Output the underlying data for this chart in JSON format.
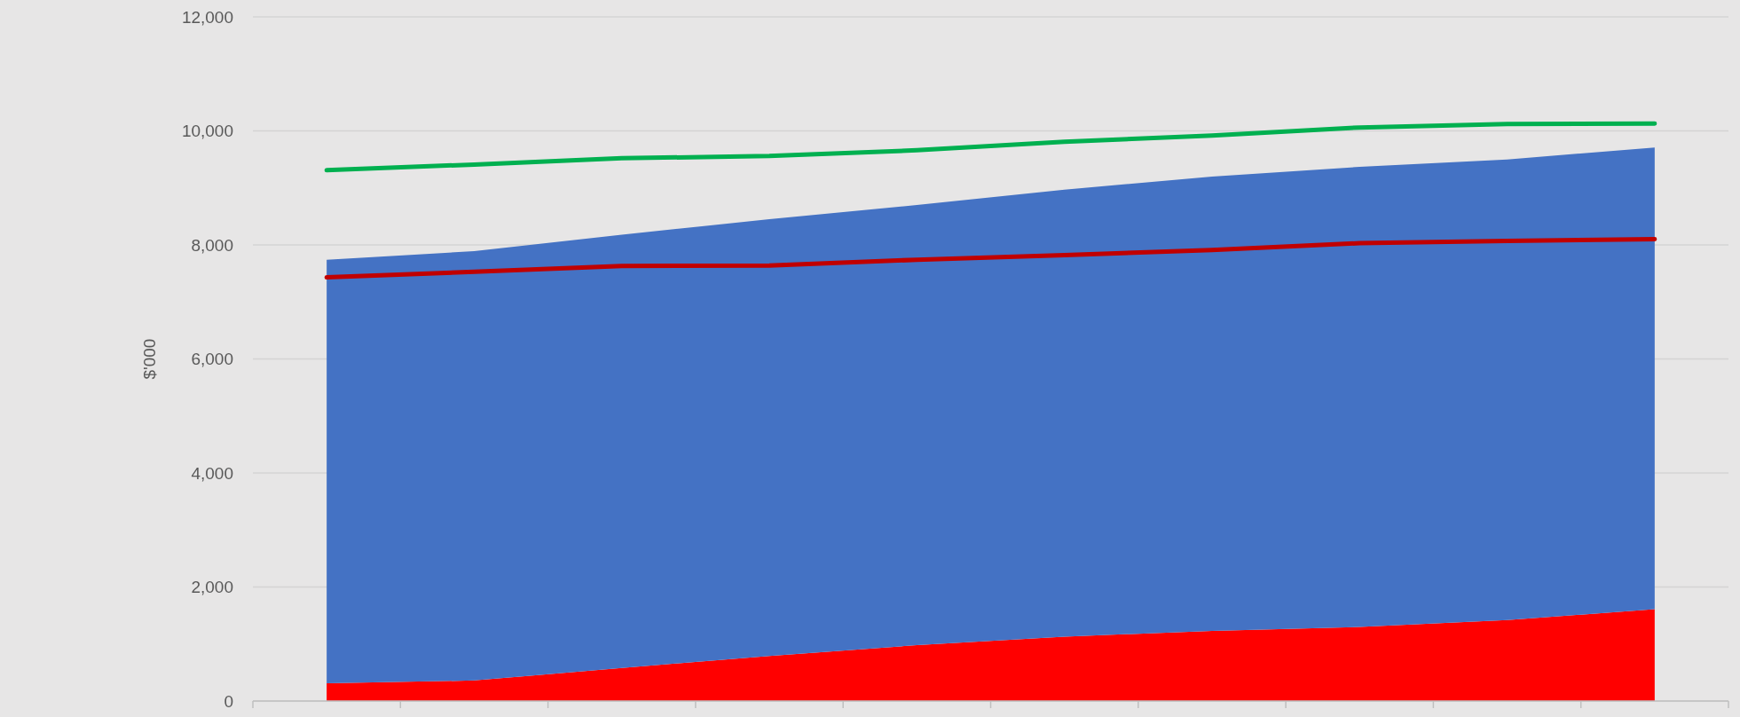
{
  "chart_data": {
    "type": "area",
    "stacked": true,
    "ylabel": "$'000",
    "categories": [
      null,
      null,
      null,
      null,
      null,
      null,
      null,
      null,
      null,
      null
    ],
    "ylim": [
      0,
      12000
    ],
    "yticks": [
      {
        "value": 0,
        "label": "0"
      },
      {
        "value": 2000,
        "label": "2,000"
      },
      {
        "value": 4000,
        "label": "4,000"
      },
      {
        "value": 6000,
        "label": "6,000"
      },
      {
        "value": 8000,
        "label": "8,000"
      },
      {
        "value": 10000,
        "label": "10,000"
      },
      {
        "value": 12000,
        "label": "12,000"
      }
    ],
    "grid": "y",
    "series": [
      {
        "color": "#ff0000",
        "values": [
          310,
          360,
          580,
          790,
          980,
          1130,
          1230,
          1300,
          1420,
          1610
        ]
      },
      {
        "color": "#4472c4",
        "values": [
          7430,
          7530,
          7600,
          7660,
          7720,
          7840,
          7970,
          8070,
          8080,
          8100
        ]
      },
      {
        "type": "line",
        "color": "#00b050",
        "values": [
          9310,
          9410,
          9520,
          9560,
          9660,
          9810,
          9920,
          10060,
          10120,
          10130
        ]
      },
      {
        "type": "line",
        "color": "#c00000",
        "values": [
          7430,
          7530,
          7630,
          7640,
          7740,
          7820,
          7910,
          8030,
          8070,
          8100
        ]
      }
    ]
  }
}
